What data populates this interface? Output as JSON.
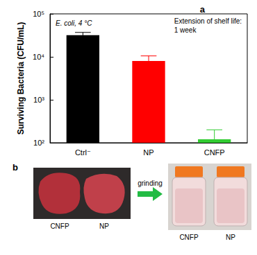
{
  "chart_data": {
    "type": "bar",
    "title": "a",
    "annotations": [
      "E. coli, 4 °C",
      "Extension of shelf life: 1 week"
    ],
    "y_label": "Surviving Bacteria (CFU/mL)",
    "categories": [
      "Ctrl⁻",
      "NP",
      "CNFP"
    ],
    "values": [
      32000,
      8000,
      120
    ],
    "errors": [
      5000,
      2500,
      80
    ],
    "colors": [
      "#000000",
      "#ff0000",
      "#33cc33"
    ],
    "log": "y",
    "ylim": [
      100,
      100000
    ],
    "yticks": [
      {
        "value": 100,
        "label": "10²"
      },
      {
        "value": 1000,
        "label": "10³"
      },
      {
        "value": 10000,
        "label": "10⁴"
      },
      {
        "value": 100000,
        "label": "10⁵"
      }
    ],
    "grid": false
  },
  "panel_b": {
    "letter": "b",
    "photo_labels": [
      "CNFP",
      "NP"
    ],
    "arrow_label": "grinding",
    "bottle_labels": [
      "CNFP",
      "NP"
    ]
  }
}
